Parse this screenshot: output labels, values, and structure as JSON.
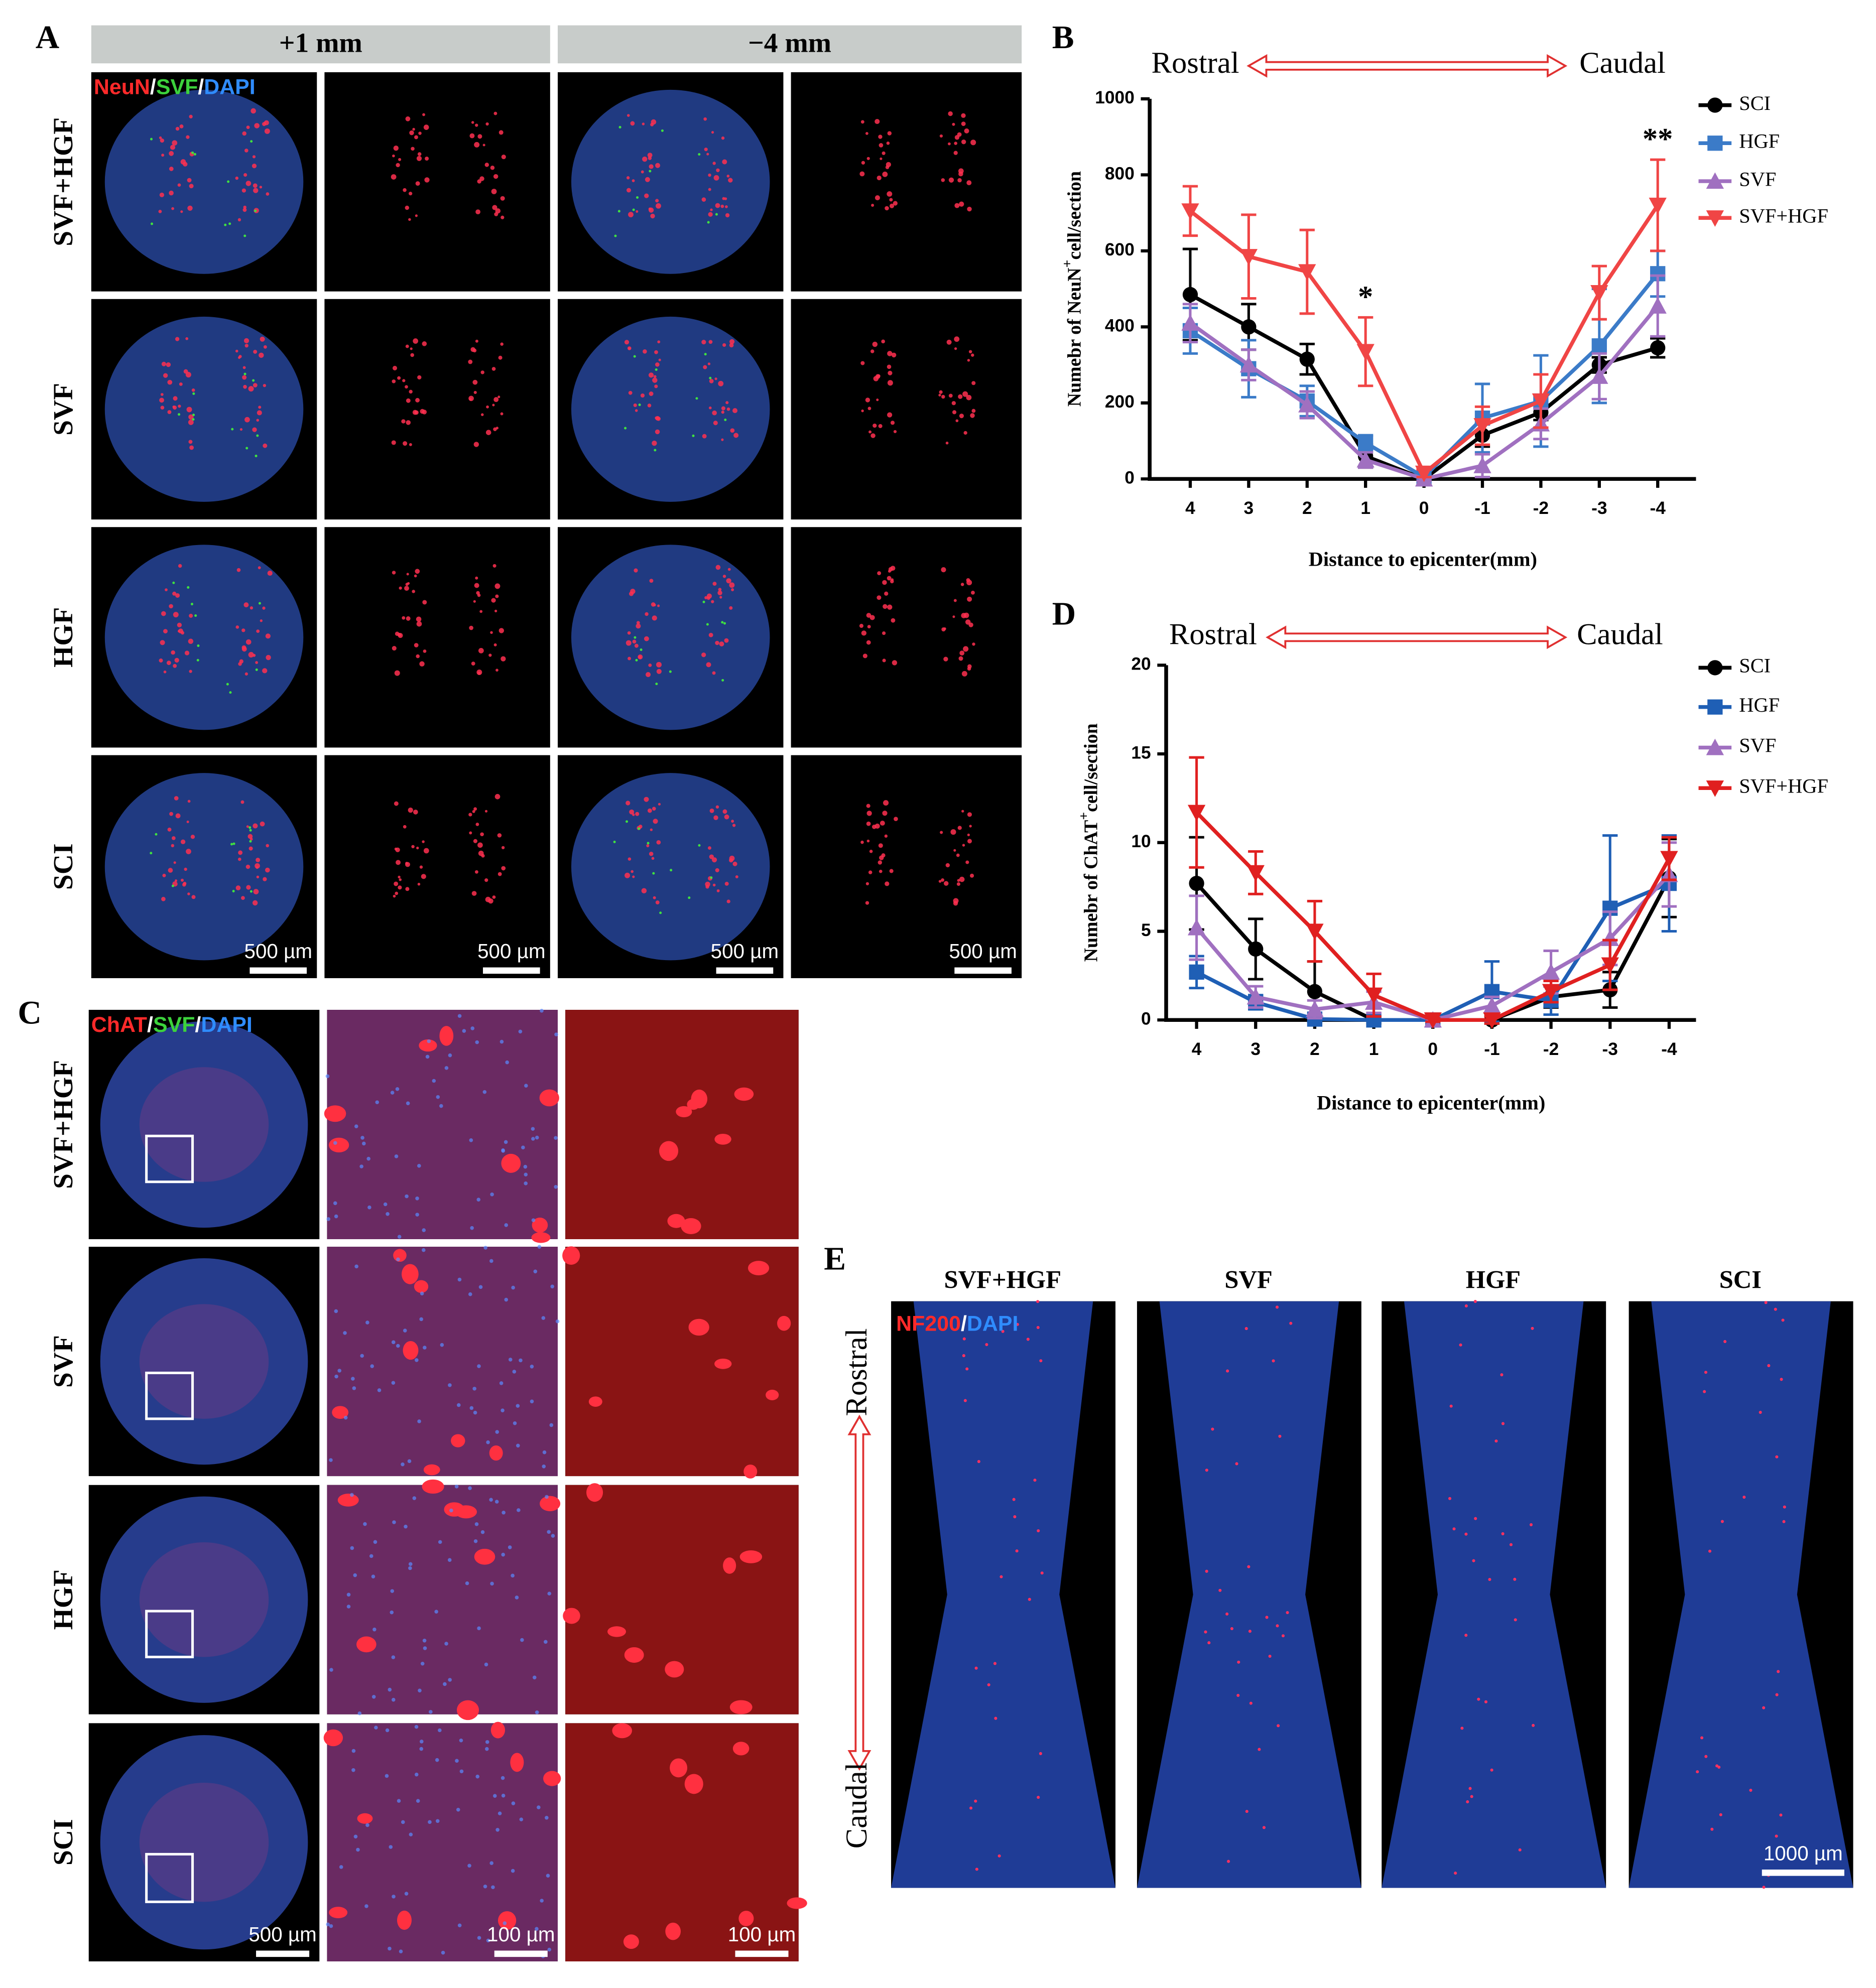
{
  "panels": {
    "A": {
      "label": "A",
      "columns": [
        "+1 mm",
        "−4 mm"
      ],
      "channels": [
        {
          "text": "NeuN",
          "color": "#ff2a2a"
        },
        {
          "text": "/",
          "color": "#ffffff"
        },
        {
          "text": "SVF",
          "color": "#3cd23c"
        },
        {
          "text": "/",
          "color": "#ffffff"
        },
        {
          "text": "DAPI",
          "color": "#2f8cff"
        }
      ],
      "rows": [
        "SVF+HGF",
        "SVF",
        "HGF",
        "SCI"
      ],
      "scale_bars": [
        "500 µm",
        "500 µm",
        "500 µm",
        "500 µm"
      ]
    },
    "C": {
      "label": "C",
      "channels": [
        {
          "text": "ChAT",
          "color": "#ff2a2a"
        },
        {
          "text": "/",
          "color": "#ffffff"
        },
        {
          "text": "SVF",
          "color": "#3cd23c"
        },
        {
          "text": "/",
          "color": "#ffffff"
        },
        {
          "text": "DAPI",
          "color": "#2f8cff"
        }
      ],
      "rows": [
        "SVF+HGF",
        "SVF",
        "HGF",
        "SCI"
      ],
      "scale_bars": [
        "500 µm",
        "100 µm",
        "100 µm"
      ]
    },
    "E": {
      "label": "E",
      "columns": [
        "SVF+HGF",
        "SVF",
        "HGF",
        "SCI"
      ],
      "channels": [
        {
          "text": "NF200",
          "color": "#ff2a2a"
        },
        {
          "text": "/",
          "color": "#ffffff"
        },
        {
          "text": "DAPI",
          "color": "#2f8cff"
        }
      ],
      "rostral": "Rostral",
      "caudal": "Caudal",
      "scale_bar": "1000 µm"
    }
  },
  "chart_data": [
    {
      "type": "line",
      "label": "B",
      "rostral": "Rostral",
      "caudal": "Caudal",
      "y_label": [
        "Numebr of NeuN",
        "+",
        "cell/section"
      ],
      "x_label": "Distance to epicenter(mm)",
      "categories": [
        "4",
        "3",
        "2",
        "1",
        "0",
        "-1",
        "-2",
        "-3",
        "-4"
      ],
      "ylim": [
        0,
        1000
      ],
      "yticks": [
        0,
        200,
        400,
        600,
        800,
        1000
      ],
      "annotations": [
        {
          "text": "*",
          "category": "1"
        },
        {
          "text": "**",
          "category": "-4"
        }
      ],
      "series": [
        {
          "name": "SCI",
          "color": "#000000",
          "marker": "circle",
          "values": [
            485,
            400,
            315,
            60,
            0,
            115,
            175,
            300,
            345
          ],
          "errors": [
            120,
            60,
            40,
            30,
            5,
            30,
            20,
            20,
            25
          ]
        },
        {
          "name": "HGF",
          "color": "#3b7bc8",
          "marker": "square",
          "values": [
            390,
            290,
            205,
            95,
            5,
            160,
            205,
            350,
            540
          ],
          "errors": [
            60,
            75,
            40,
            20,
            5,
            90,
            120,
            150,
            60
          ]
        },
        {
          "name": "SVF",
          "color": "#a070c0",
          "marker": "triangle-up",
          "values": [
            410,
            300,
            195,
            50,
            0,
            35,
            145,
            270,
            455
          ],
          "errors": [
            50,
            40,
            35,
            20,
            5,
            30,
            40,
            60,
            80
          ]
        },
        {
          "name": "SVF+HGF",
          "color": "#f04545",
          "marker": "triangle-down",
          "values": [
            705,
            585,
            545,
            335,
            15,
            140,
            205,
            490,
            720
          ],
          "errors": [
            65,
            110,
            110,
            90,
            10,
            50,
            70,
            70,
            120
          ]
        }
      ]
    },
    {
      "type": "line",
      "label": "D",
      "rostral": "Rostral",
      "caudal": "Caudal",
      "y_label": [
        "Numebr of ChAT",
        "+",
        "cell/section"
      ],
      "x_label": "Distance to epicenter(mm)",
      "categories": [
        "4",
        "3",
        "2",
        "1",
        "0",
        "-1",
        "-2",
        "-3",
        "-4"
      ],
      "ylim": [
        0,
        20
      ],
      "yticks": [
        0,
        5,
        10,
        15,
        20
      ],
      "series": [
        {
          "name": "SCI",
          "color": "#000000",
          "marker": "circle",
          "values": [
            7.7,
            4,
            1.6,
            0,
            0,
            0,
            1.3,
            1.7,
            8
          ],
          "errors": [
            2.6,
            1.7,
            1.7,
            0.2,
            0.1,
            0.2,
            0.6,
            1.0,
            2.2
          ]
        },
        {
          "name": "HGF",
          "color": "#1f5fb5",
          "marker": "square",
          "values": [
            2.7,
            1.0,
            0.05,
            0,
            0,
            1.6,
            1.1,
            6.3,
            7.7
          ],
          "errors": [
            0.9,
            0.4,
            0.1,
            0.1,
            0.1,
            1.7,
            0.8,
            4.1,
            2.7
          ]
        },
        {
          "name": "SVF",
          "color": "#a070c0",
          "marker": "triangle-up",
          "values": [
            5.2,
            1.3,
            0.6,
            1.0,
            0,
            0.8,
            2.7,
            4.6,
            8.2
          ],
          "errors": [
            1.8,
            0.6,
            0.5,
            0.6,
            0.1,
            0.5,
            1.2,
            1.5,
            1.8
          ]
        },
        {
          "name": "SVF+HGF",
          "color": "#e02020",
          "marker": "triangle-down",
          "values": [
            11.7,
            8.3,
            5.0,
            1.4,
            0,
            0,
            1.6,
            3.1,
            9.1
          ],
          "errors": [
            3.1,
            1.2,
            1.7,
            1.2,
            0.1,
            0.2,
            0.6,
            1.4,
            1.2
          ]
        }
      ]
    }
  ]
}
